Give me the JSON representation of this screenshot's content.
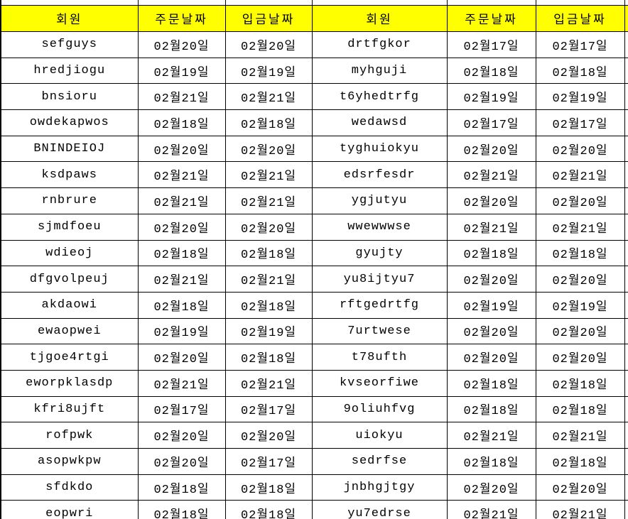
{
  "colors": {
    "background": "#FFFFFF",
    "header_bg": "#FFFF00",
    "border": "#000000",
    "text": "#000000"
  },
  "table": {
    "header": [
      "회원",
      "주문날짜",
      "입금날짜",
      "회원",
      "주문날짜",
      "입금날짜"
    ],
    "rows": [
      [
        "sefguys",
        "02월20일",
        "02월20일",
        "drtfgkor",
        "02월17일",
        "02월17일"
      ],
      [
        "hredjiogu",
        "02월19일",
        "02월19일",
        "myhguji",
        "02월18일",
        "02월18일"
      ],
      [
        "bnsioru",
        "02월21일",
        "02월21일",
        "t6yhedtrfg",
        "02월19일",
        "02월19일"
      ],
      [
        "owdekapwos",
        "02월18일",
        "02월18일",
        "wedawsd",
        "02월17일",
        "02월17일"
      ],
      [
        "BNINDEIOJ",
        "02월20일",
        "02월20일",
        "tyghuiokyu",
        "02월20일",
        "02월20일"
      ],
      [
        "ksdpaws",
        "02월21일",
        "02월21일",
        "edsrfesdr",
        "02월21일",
        "02월21일"
      ],
      [
        "rnbrure",
        "02월21일",
        "02월21일",
        "ygjutyu",
        "02월20일",
        "02월20일"
      ],
      [
        "sjmdfoeu",
        "02월20일",
        "02월20일",
        "wwewwwse",
        "02월21일",
        "02월21일"
      ],
      [
        "wdieoj",
        "02월18일",
        "02월18일",
        "gyujty",
        "02월18일",
        "02월18일"
      ],
      [
        "dfgvolpeuj",
        "02월21일",
        "02월21일",
        "yu8ijtyu7",
        "02월20일",
        "02월20일"
      ],
      [
        "akdaowi",
        "02월18일",
        "02월18일",
        "rftgedrtfg",
        "02월19일",
        "02월19일"
      ],
      [
        "ewaopwei",
        "02월19일",
        "02월19일",
        "7urtwese",
        "02월20일",
        "02월20일"
      ],
      [
        "tjgoe4rtgi",
        "02월20일",
        "02월18일",
        "t78ufth",
        "02월20일",
        "02월20일"
      ],
      [
        "eworpklasdp",
        "02월21일",
        "02월21일",
        "kvseorfiwe",
        "02월18일",
        "02월18일"
      ],
      [
        "kfri8ujft",
        "02월17일",
        "02월17일",
        "9oliuhfvg",
        "02월18일",
        "02월18일"
      ],
      [
        "rofpwk",
        "02월20일",
        "02월20일",
        "uiokyu",
        "02월21일",
        "02월21일"
      ],
      [
        "asopwkpw",
        "02월20일",
        "02월17일",
        "sedrfse",
        "02월18일",
        "02월18일"
      ],
      [
        "sfdkdo",
        "02월18일",
        "02월18일",
        "jnbhgjtgy",
        "02월20일",
        "02월20일"
      ],
      [
        "eopwri",
        "02월18일",
        "02월18일",
        "yu7edrse",
        "02월21일",
        "02월21일"
      ]
    ]
  }
}
